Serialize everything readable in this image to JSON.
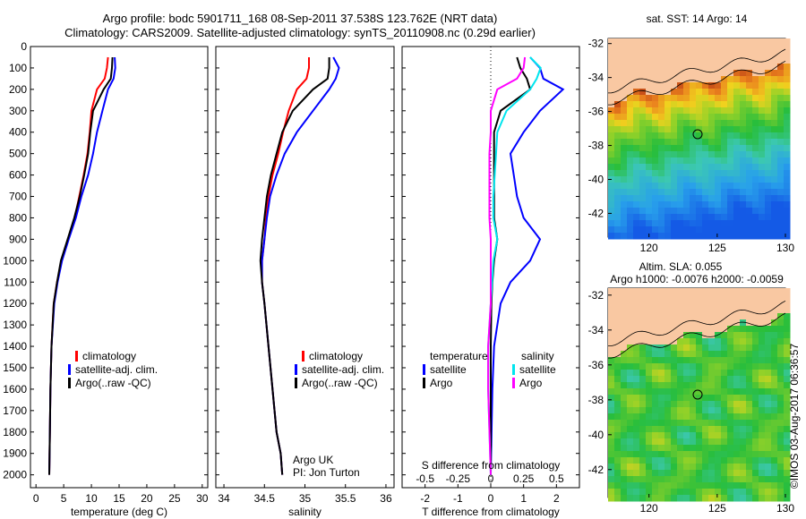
{
  "title_line1": "Argo profile: bodc 5901711_168 08-Sep-2011 37.538S 123.762E (NRT data)",
  "title_line2": "Climatology: CARS2009. Satellite-adjusted climatology: synTS_20110908.nc (0.29d earlier)",
  "watermark": "©IMOS 03-Aug-2017 06:36:57",
  "colors": {
    "climatology": "#ff0000",
    "satellite": "#0000ff",
    "argo": "#000000",
    "argo_salinity": "#ff00ff",
    "satellite_salinity": "#00e5ee",
    "land": "#f9c8a2",
    "ocean_base": "#21c93a"
  },
  "depth_axis": {
    "ticks": [
      0,
      100,
      200,
      300,
      400,
      500,
      600,
      700,
      800,
      900,
      1000,
      1100,
      1200,
      1300,
      1400,
      1500,
      1600,
      1700,
      1800,
      1900,
      2000
    ],
    "range": [
      0,
      2060
    ],
    "reversed": true
  },
  "panel_temp": {
    "xlabel": "temperature (deg C)",
    "xticks": [
      0,
      5,
      10,
      15,
      20,
      25,
      30
    ]
  },
  "panel_sal": {
    "xlabel": "salinity",
    "xticks": [
      34,
      34.5,
      35,
      35.5,
      36
    ],
    "note1": "Argo UK",
    "note2": "PI: Jon Turton"
  },
  "panel_diff": {
    "xlabel_top": "S difference from climatology",
    "xticks_top": [
      "-0.5",
      "-0.25",
      "0",
      "0.25",
      "0.5"
    ],
    "xlabel_bottom": "T difference from climatology",
    "xticks_bottom": [
      "-2",
      "-1",
      "0",
      "1",
      "2"
    ]
  },
  "legend_profiles": [
    "climatology",
    "satellite-adj. clim.",
    "Argo(..raw -QC)"
  ],
  "legend_diff": {
    "head_t": "temperature",
    "head_s": "salinity",
    "satellite": "satellite",
    "argo": "Argo"
  },
  "map_sst": {
    "title": "sat. SST: 14 Argo: 14",
    "lon_ticks": [
      "120",
      "125",
      "130"
    ],
    "lat_ticks": [
      "-32",
      "-34",
      "-36",
      "-38",
      "-40",
      "-42"
    ],
    "float_lat": -37.538,
    "float_lon": 123.762
  },
  "map_sla": {
    "title1": "Altim. SLA: 0.055",
    "title2": "Argo h1000: -0.0076 h2000: -0.0059",
    "lon_ticks": [
      "120",
      "125",
      "130"
    ],
    "lat_ticks": [
      "-32",
      "-34",
      "-36",
      "-38",
      "-40",
      "-42"
    ],
    "float_lat": -37.538,
    "float_lon": 123.762
  },
  "chart_data": [
    {
      "type": "line",
      "title": "",
      "xlabel": "temperature (deg C)",
      "ylabel": "",
      "xlim": [
        -1,
        31
      ],
      "ylim": [
        2060,
        0
      ],
      "series": [
        {
          "name": "climatology",
          "x": [
            13.0,
            12.8,
            12.4,
            11.0,
            10.0,
            9.7,
            9.3,
            8.6,
            7.8,
            7.0,
            5.8,
            4.6,
            3.8,
            3.2,
            2.8,
            2.6,
            2.5,
            2.4
          ],
          "y": [
            50,
            100,
            150,
            200,
            300,
            400,
            500,
            600,
            700,
            800,
            900,
            1000,
            1100,
            1200,
            1400,
            1600,
            1800,
            2000
          ]
        },
        {
          "name": "satellite-adj. clim.",
          "x": [
            14.2,
            14.3,
            14.0,
            13.0,
            12.0,
            11.0,
            10.3,
            9.4,
            8.2,
            7.2,
            5.9,
            4.7,
            3.9,
            3.3,
            2.8,
            2.6,
            2.5,
            2.4
          ],
          "y": [
            50,
            100,
            150,
            200,
            300,
            400,
            500,
            600,
            700,
            800,
            900,
            1000,
            1100,
            1200,
            1400,
            1600,
            1800,
            2000
          ]
        },
        {
          "name": "Argo(..raw -QC)",
          "x": [
            13.8,
            13.7,
            13.5,
            12.2,
            10.3,
            9.8,
            9.4,
            8.7,
            7.9,
            6.9,
            5.7,
            4.5,
            3.8,
            3.2,
            2.8,
            2.6,
            2.5,
            2.4
          ],
          "y": [
            50,
            100,
            150,
            200,
            300,
            400,
            500,
            600,
            700,
            800,
            900,
            1000,
            1100,
            1200,
            1400,
            1600,
            1800,
            2000
          ]
        }
      ]
    },
    {
      "type": "line",
      "title": "",
      "xlabel": "salinity",
      "ylabel": "",
      "xlim": [
        33.9,
        36.1
      ],
      "ylim": [
        2060,
        0
      ],
      "series": [
        {
          "name": "climatology",
          "x": [
            35.05,
            35.05,
            35.02,
            34.9,
            34.8,
            34.73,
            34.67,
            34.6,
            34.55,
            34.52,
            34.5,
            34.47,
            34.47,
            34.5,
            34.55,
            34.6,
            34.65,
            34.7,
            34.72
          ],
          "y": [
            50,
            100,
            150,
            200,
            300,
            400,
            500,
            600,
            700,
            800,
            900,
            1000,
            1100,
            1200,
            1400,
            1600,
            1800,
            1900,
            2000
          ]
        },
        {
          "name": "satellite-adj. clim.",
          "x": [
            35.35,
            35.42,
            35.38,
            35.3,
            35.1,
            34.9,
            34.75,
            34.65,
            34.57,
            34.53,
            34.5,
            34.47,
            34.47,
            34.5,
            34.55,
            34.6,
            34.65,
            34.7,
            34.72
          ],
          "y": [
            50,
            100,
            150,
            200,
            300,
            400,
            500,
            600,
            700,
            800,
            900,
            1000,
            1100,
            1200,
            1400,
            1600,
            1800,
            1900,
            2000
          ]
        },
        {
          "name": "Argo(..raw -QC)",
          "x": [
            35.3,
            35.3,
            35.28,
            35.1,
            34.85,
            34.72,
            34.65,
            34.58,
            34.53,
            34.5,
            34.47,
            34.45,
            34.47,
            34.5,
            34.55,
            34.6,
            34.65,
            34.7,
            34.72
          ],
          "y": [
            50,
            100,
            150,
            200,
            300,
            400,
            500,
            600,
            700,
            800,
            900,
            1000,
            1100,
            1200,
            1400,
            1600,
            1800,
            1900,
            2000
          ]
        }
      ]
    },
    {
      "type": "line",
      "title": "",
      "xlabel": "T difference from climatology",
      "ylabel": "",
      "xlim": [
        -2.7,
        2.7
      ],
      "ylim": [
        2060,
        0
      ],
      "series": [
        {
          "name": "temperature satellite",
          "x": [
            1.2,
            1.5,
            1.6,
            2.2,
            1.5,
            1.0,
            0.6,
            0.7,
            0.8,
            1.0,
            1.5,
            1.2,
            0.6,
            0.3,
            0.1,
            0.05,
            0.0
          ],
          "y": [
            50,
            100,
            150,
            200,
            300,
            400,
            500,
            600,
            700,
            800,
            900,
            1000,
            1100,
            1200,
            1400,
            1600,
            2000
          ]
        },
        {
          "name": "temperature Argo",
          "x": [
            0.8,
            0.9,
            1.1,
            1.2,
            0.3,
            0.1,
            0.1,
            0.1,
            0.1,
            0.1,
            0.2,
            0.1,
            0.05,
            0.02,
            0.0,
            0.0,
            0.0
          ],
          "y": [
            50,
            100,
            150,
            200,
            300,
            400,
            500,
            600,
            700,
            800,
            900,
            1000,
            1100,
            1200,
            1400,
            1600,
            2000
          ]
        },
        {
          "name": "salinity satellite",
          "x": [
            0.3,
            0.38,
            0.35,
            0.3,
            0.12,
            0.05,
            0.04,
            0.03,
            0.02,
            0.02,
            0.05,
            0.02,
            0.01,
            0.0,
            -0.02,
            -0.02,
            0.0
          ],
          "y": [
            50,
            100,
            150,
            200,
            300,
            400,
            500,
            600,
            700,
            800,
            900,
            1000,
            1100,
            1200,
            1400,
            1600,
            2000
          ]
        },
        {
          "name": "salinity Argo",
          "x": [
            0.26,
            0.25,
            0.2,
            0.05,
            0.0,
            0.0,
            -0.01,
            -0.01,
            -0.01,
            -0.01,
            0.0,
            0.0,
            0.0,
            0.0,
            -0.02,
            -0.02,
            0.0
          ],
          "y": [
            50,
            100,
            150,
            200,
            300,
            400,
            500,
            600,
            700,
            800,
            900,
            1000,
            1100,
            1200,
            1400,
            1600,
            2000
          ]
        }
      ]
    }
  ]
}
